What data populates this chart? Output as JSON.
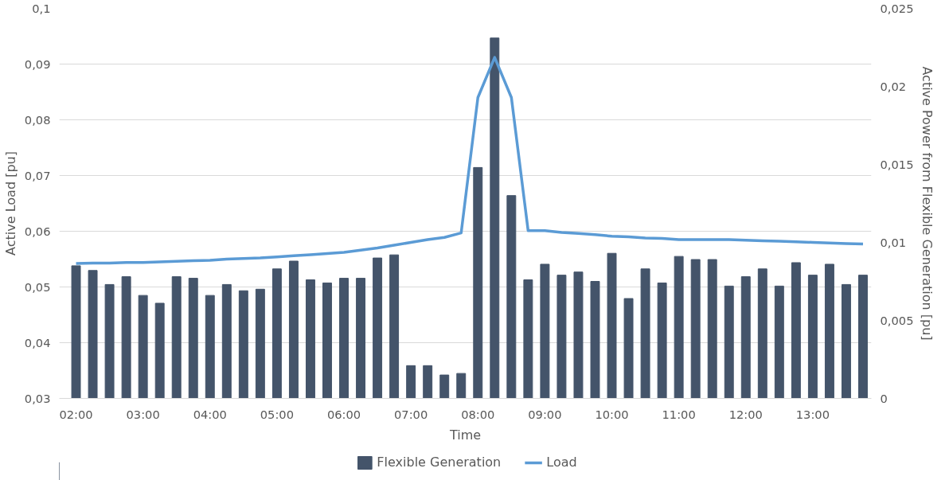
{
  "chart_data": {
    "type": "bar",
    "xlabel": "Time",
    "ylabel": "Active Load [pu]",
    "y2label": "Active Power from Flexible Generation [pu]",
    "x": [
      2,
      2.25,
      2.5,
      2.75,
      3,
      3.25,
      3.5,
      3.75,
      4,
      4.25,
      4.5,
      4.75,
      5,
      5.25,
      5.5,
      5.75,
      6,
      6.25,
      6.5,
      6.75,
      7,
      7.25,
      7.5,
      7.75,
      8,
      8.25,
      8.5,
      8.75,
      9,
      9.25,
      9.5,
      9.75,
      10,
      10.25,
      10.5,
      10.75,
      11,
      11.25,
      11.5,
      11.75,
      12,
      12.25,
      12.5,
      12.75,
      13,
      13.25,
      13.5,
      13.75
    ],
    "series": [
      {
        "name": "Flexible Generation",
        "axis": "y2",
        "color": "#44546a",
        "values": [
          0.0085,
          0.0082,
          0.0073,
          0.0078,
          0.0066,
          0.0061,
          0.0078,
          0.0077,
          0.0066,
          0.0073,
          0.0069,
          0.007,
          0.0083,
          0.0088,
          0.0076,
          0.0074,
          0.0077,
          0.0077,
          0.009,
          0.0092,
          0.0021,
          0.0021,
          0.0015,
          0.0016,
          0.0148,
          0.0231,
          0.013,
          0.0076,
          0.0086,
          0.0079,
          0.0081,
          0.0075,
          0.0093,
          0.0064,
          0.0083,
          0.0074,
          0.0091,
          0.0089,
          0.0089,
          0.0072,
          0.0078,
          0.0083,
          0.0072,
          0.0087,
          0.0079,
          0.0086,
          0.0073,
          0.0079
        ]
      },
      {
        "name": "Load",
        "type": "line",
        "axis": "y",
        "color": "#5b9bd5",
        "values": [
          0.0542,
          0.0543,
          0.0543,
          0.0544,
          0.0544,
          0.0545,
          0.0546,
          0.0547,
          0.0548,
          0.055,
          0.0551,
          0.0552,
          0.0554,
          0.0556,
          0.0558,
          0.056,
          0.0562,
          0.0566,
          0.057,
          0.0575,
          0.058,
          0.0585,
          0.0589,
          0.0597,
          0.084,
          0.0912,
          0.084,
          0.0601,
          0.0601,
          0.0598,
          0.0596,
          0.0594,
          0.0591,
          0.059,
          0.0588,
          0.0587,
          0.0585,
          0.0585,
          0.0585,
          0.0585,
          0.0584,
          0.0583,
          0.0582,
          0.0581,
          0.058,
          0.0579,
          0.0578,
          0.0577
        ]
      }
    ],
    "xlim": [
      1.75,
      13.875
    ],
    "xticks": [
      {
        "value": 2,
        "label": "02:00"
      },
      {
        "value": 3,
        "label": "03:00"
      },
      {
        "value": 4,
        "label": "04:00"
      },
      {
        "value": 5,
        "label": "05:00"
      },
      {
        "value": 6,
        "label": "06:00"
      },
      {
        "value": 7,
        "label": "07:00"
      },
      {
        "value": 8,
        "label": "08:00"
      },
      {
        "value": 9,
        "label": "09:00"
      },
      {
        "value": 10,
        "label": "10:00"
      },
      {
        "value": 11,
        "label": "11:00"
      },
      {
        "value": 12,
        "label": "12:00"
      },
      {
        "value": 13,
        "label": "13:00"
      }
    ],
    "ylim": [
      0.03,
      0.1
    ],
    "yticks": [
      {
        "value": 0.03,
        "label": "0,03"
      },
      {
        "value": 0.04,
        "label": "0,04"
      },
      {
        "value": 0.05,
        "label": "0,05"
      },
      {
        "value": 0.06,
        "label": "0,06"
      },
      {
        "value": 0.07,
        "label": "0,07"
      },
      {
        "value": 0.08,
        "label": "0,08"
      },
      {
        "value": 0.09,
        "label": "0,09"
      },
      {
        "value": 0.1,
        "label": "0,1"
      }
    ],
    "y2lim": [
      0,
      0.025
    ],
    "y2ticks": [
      0,
      {
        "value": 0.005,
        "label": "0,005"
      },
      {
        "value": 0.01,
        "label": "0,01"
      },
      {
        "value": 0.015,
        "label": "0,015"
      },
      {
        "value": 0.02,
        "label": "0,02"
      },
      {
        "value": 0.025,
        "label": "0,025"
      }
    ],
    "grid": "y",
    "legend": "bottom"
  }
}
